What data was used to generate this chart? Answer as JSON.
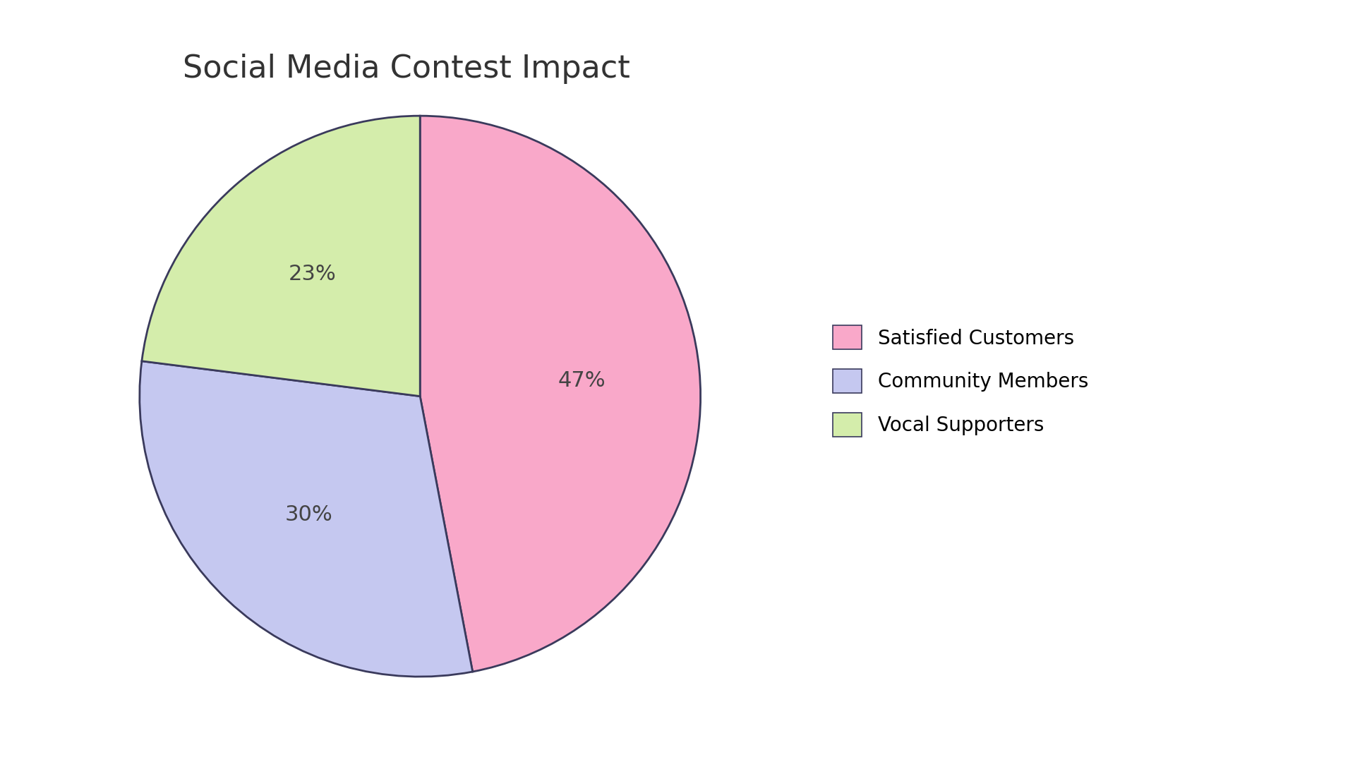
{
  "title": "Social Media Contest Impact",
  "slices": [
    47,
    30,
    23
  ],
  "labels": [
    "Satisfied Customers",
    "Community Members",
    "Vocal Supporters"
  ],
  "colors": [
    "#F9A8C9",
    "#C5C8F0",
    "#D4EDAB"
  ],
  "edge_color": "#3a3a5c",
  "edge_linewidth": 2.0,
  "pct_labels": [
    "47%",
    "30%",
    "23%"
  ],
  "startangle": 90,
  "title_fontsize": 32,
  "title_color": "#333333",
  "pct_fontsize": 22,
  "legend_fontsize": 20,
  "background_color": "#ffffff",
  "pct_label_colors": [
    "#444444",
    "#444444",
    "#444444"
  ]
}
